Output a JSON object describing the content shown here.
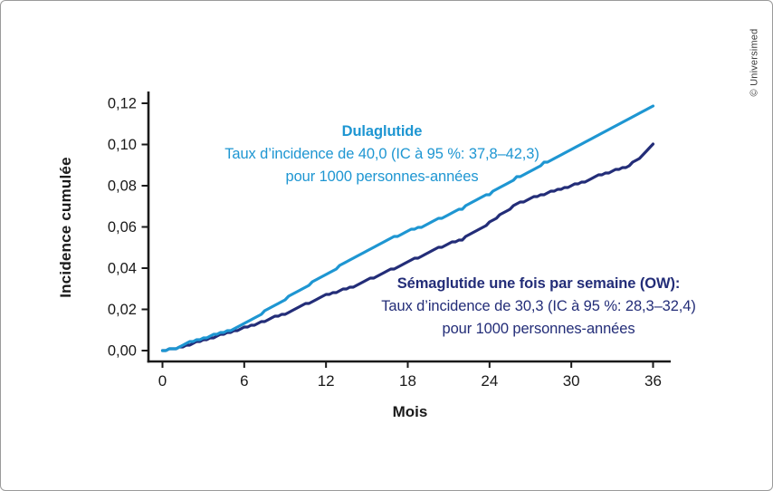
{
  "watermark": "© Universimed",
  "chart_data": {
    "type": "line",
    "title": "",
    "xlabel": "Mois",
    "ylabel": "Incidence cumulée",
    "xlim": [
      0,
      36
    ],
    "ylim": [
      0,
      0.12
    ],
    "grid": false,
    "legend_position": "inline-annotations",
    "x_ticks": [
      0,
      6,
      12,
      18,
      24,
      30,
      36
    ],
    "y_ticks": [
      0,
      0.02,
      0.04,
      0.06,
      0.08,
      0.1,
      0.12
    ],
    "y_tick_labels": [
      "0,00",
      "0,02",
      "0,04",
      "0,06",
      "0,08",
      "0,10",
      "0,12"
    ],
    "x": [
      0,
      1,
      2,
      3,
      4,
      5,
      6,
      7,
      8,
      9,
      10,
      11,
      12,
      13,
      14,
      15,
      16,
      17,
      18,
      19,
      20,
      21,
      22,
      23,
      24,
      25,
      26,
      27,
      28,
      29,
      30,
      31,
      32,
      33,
      34,
      35,
      36
    ],
    "series": [
      {
        "name": "Dulaglutide",
        "color": "#1E96D2",
        "values": [
          0.0,
          0.001,
          0.004,
          0.006,
          0.008,
          0.01,
          0.013,
          0.017,
          0.021,
          0.025,
          0.029,
          0.033,
          0.037,
          0.041,
          0.045,
          0.048,
          0.052,
          0.055,
          0.058,
          0.06,
          0.063,
          0.066,
          0.069,
          0.073,
          0.076,
          0.08,
          0.084,
          0.087,
          0.091,
          0.094,
          0.098,
          0.101,
          0.105,
          0.108,
          0.112,
          0.115,
          0.119
        ]
      },
      {
        "name": "Sémaglutide une fois par semaine (OW)",
        "color": "#232D78",
        "values": [
          0.0,
          0.001,
          0.003,
          0.005,
          0.007,
          0.009,
          0.011,
          0.013,
          0.016,
          0.018,
          0.021,
          0.024,
          0.027,
          0.029,
          0.031,
          0.034,
          0.037,
          0.04,
          0.043,
          0.046,
          0.049,
          0.052,
          0.054,
          0.058,
          0.062,
          0.067,
          0.071,
          0.074,
          0.076,
          0.078,
          0.08,
          0.082,
          0.085,
          0.087,
          0.089,
          0.093,
          0.1
        ]
      }
    ],
    "annotations": [
      {
        "title": "Dulaglutide",
        "lines": [
          "Taux d’incidence de 40,0 (IC à 95 %: 37,8–42,3)",
          "pour 1000 personnes-années"
        ],
        "color": "#1E96D2"
      },
      {
        "title": "Sémaglutide une fois par semaine (OW):",
        "lines": [
          "Taux d’incidence de 30,3 (IC à 95 %: 28,3–32,4)",
          "pour 1000 personnes-années"
        ],
        "color": "#232D78"
      }
    ]
  }
}
